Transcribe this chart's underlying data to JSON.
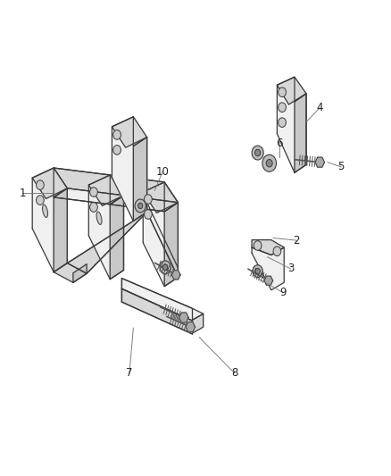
{
  "background_color": "#ffffff",
  "part_edge_color": "#3a3a3a",
  "part_fill_color": "#f0f0f0",
  "part_fill_dark": "#d8d8d8",
  "part_fill_darker": "#c8c8c8",
  "callout_color": "#777777",
  "callout_fs": 8.5,
  "figsize": [
    4.38,
    5.33
  ],
  "dpi": 100,
  "labels": {
    "1": [
      0.055,
      0.595,
      0.135,
      0.595
    ],
    "2": [
      0.76,
      0.495,
      0.7,
      0.5
    ],
    "3": [
      0.745,
      0.435,
      0.685,
      0.46
    ],
    "4": [
      0.82,
      0.775,
      0.785,
      0.745
    ],
    "5": [
      0.875,
      0.65,
      0.84,
      0.66
    ],
    "6": [
      0.715,
      0.7,
      0.715,
      0.67
    ],
    "7": [
      0.33,
      0.215,
      0.34,
      0.31
    ],
    "8": [
      0.6,
      0.215,
      0.51,
      0.29
    ],
    "9": [
      0.725,
      0.385,
      0.66,
      0.415
    ],
    "10": [
      0.415,
      0.64,
      0.395,
      0.6
    ]
  }
}
